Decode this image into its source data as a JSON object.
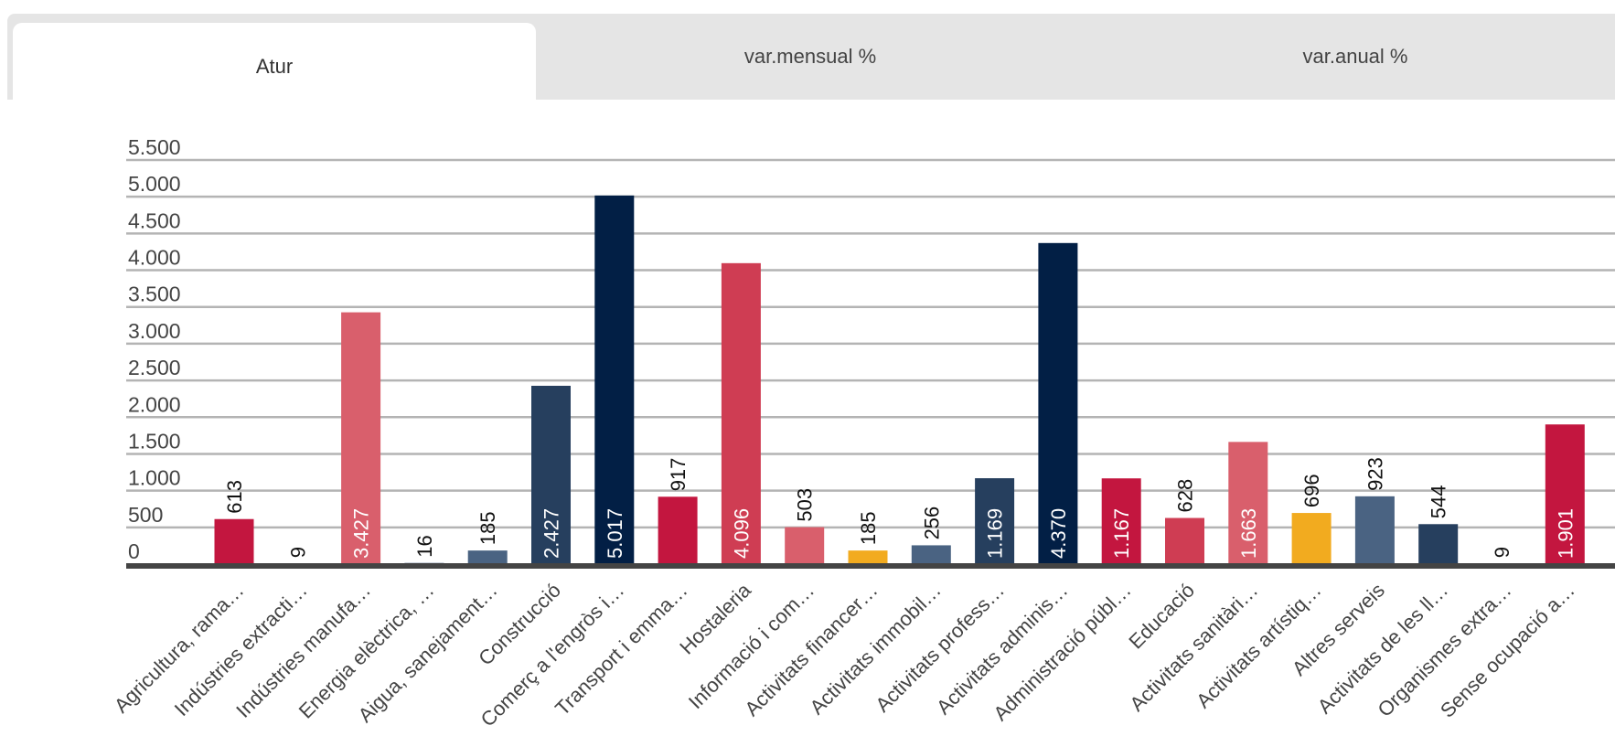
{
  "tabs": [
    {
      "label": "Atur",
      "active": true
    },
    {
      "label": "var.mensual %",
      "active": false
    },
    {
      "label": "var.anual %",
      "active": false
    }
  ],
  "chart_data": {
    "type": "bar",
    "ylim": [
      0,
      5500
    ],
    "yticks": [
      {
        "value": 0,
        "label": "0"
      },
      {
        "value": 500,
        "label": "500"
      },
      {
        "value": 1000,
        "label": "1.000"
      },
      {
        "value": 1500,
        "label": "1.500"
      },
      {
        "value": 2000,
        "label": "2.000"
      },
      {
        "value": 2500,
        "label": "2.500"
      },
      {
        "value": 3000,
        "label": "3.000"
      },
      {
        "value": 3500,
        "label": "3.500"
      },
      {
        "value": 4000,
        "label": "4.000"
      },
      {
        "value": 4500,
        "label": "4.500"
      },
      {
        "value": 5000,
        "label": "5.000"
      },
      {
        "value": 5500,
        "label": "5.500"
      }
    ],
    "grid": true,
    "categories": [
      "Agricultura, rama…",
      "Indústries extracti…",
      "Indústries manufa…",
      "Energia elèctrica, …",
      "Aigua, sanejament…",
      "Construcció",
      "Comerç a l'engròs i…",
      "Transport i emma…",
      "Hostaleria",
      "Informació i com…",
      "Activitats financer…",
      "Activitats immobil…",
      "Activitats profess…",
      "Activitats adminis…",
      "Administració públ…",
      "Educació",
      "Activitats sanitàri…",
      "Activitats artístiq…",
      "Altres serveis",
      "Activitats de les ll…",
      "Organismes extra…",
      "Sense ocupació a…"
    ],
    "values": [
      613,
      9,
      3427,
      16,
      185,
      2427,
      5017,
      917,
      4096,
      503,
      185,
      256,
      1169,
      4370,
      1167,
      628,
      1663,
      696,
      923,
      544,
      9,
      1901
    ],
    "value_labels": [
      "613",
      "9",
      "3.427",
      "16",
      "185",
      "2.427",
      "5.017",
      "917",
      "4.096",
      "503",
      "185",
      "256",
      "1.169",
      "4.370",
      "1.167",
      "628",
      "1.663",
      "696",
      "923",
      "544",
      "9",
      "1.901"
    ],
    "show_value_label": [
      true,
      true,
      true,
      true,
      true,
      true,
      true,
      true,
      true,
      true,
      true,
      true,
      true,
      true,
      true,
      true,
      true,
      true,
      true,
      true,
      true,
      true
    ],
    "colors": [
      "#c3163f",
      "#c3163f",
      "#d95f6c",
      "#4a6382",
      "#4a6382",
      "#263f5e",
      "#021f45",
      "#c3163f",
      "#cf3d53",
      "#d95f6c",
      "#f2ab1f",
      "#4a6382",
      "#263f5e",
      "#021f45",
      "#c3163f",
      "#cf3d53",
      "#d95f6c",
      "#f2ab1f",
      "#4a6382",
      "#263f5e",
      "#021f45",
      "#c3163f"
    ]
  }
}
